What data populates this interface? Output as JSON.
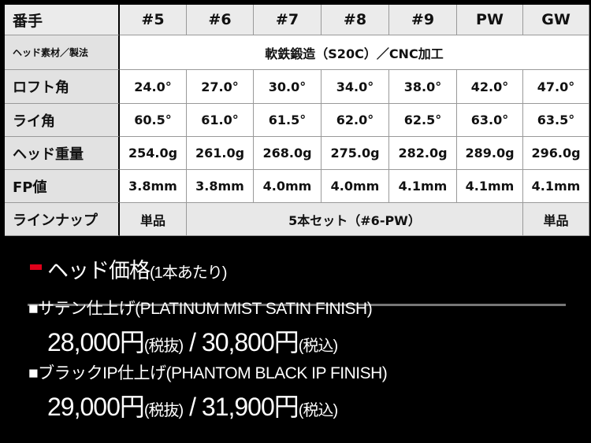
{
  "table": {
    "header": {
      "label": "番手",
      "cols": [
        "#5",
        "#6",
        "#7",
        "#8",
        "#9",
        "PW",
        "GW"
      ]
    },
    "material": {
      "label": "ヘッド素材／製法",
      "value": "軟鉄鍛造（S20C）／CNC加工"
    },
    "rows": [
      {
        "label": "ロフト角",
        "values": [
          "24.0°",
          "27.0°",
          "30.0°",
          "34.0°",
          "38.0°",
          "42.0°",
          "47.0°"
        ]
      },
      {
        "label": "ライ角",
        "values": [
          "60.5°",
          "61.0°",
          "61.5°",
          "62.0°",
          "62.5°",
          "63.0°",
          "63.5°"
        ]
      },
      {
        "label": "ヘッド重量",
        "values": [
          "254.0g",
          "261.0g",
          "268.0g",
          "275.0g",
          "282.0g",
          "289.0g",
          "296.0g"
        ]
      },
      {
        "label": "FP値",
        "values": [
          "3.8mm",
          "3.8mm",
          "4.0mm",
          "4.0mm",
          "4.1mm",
          "4.1mm",
          "4.1mm"
        ]
      }
    ],
    "lineup": {
      "label": "ラインナップ",
      "first": "単品",
      "set": "5本セット（#6-PW）",
      "last": "単品"
    }
  },
  "price": {
    "heading": "ヘッド価格",
    "heading_note": "(1本あたり)",
    "accent": "#e0001a",
    "items": [
      {
        "name": "■サテン仕上げ(PLATINUM MIST SATIN FINISH)",
        "ex": "28,000円",
        "ex_note": "(税抜)",
        "sep": " / ",
        "in": "30,800円",
        "in_note": "(税込)"
      },
      {
        "name": "■ブラックIP仕上げ(PHANTOM BLACK IP FINISH)",
        "ex": "29,000円",
        "ex_note": "(税抜)",
        "sep": " / ",
        "in": "31,900円",
        "in_note": "(税込)"
      }
    ]
  }
}
